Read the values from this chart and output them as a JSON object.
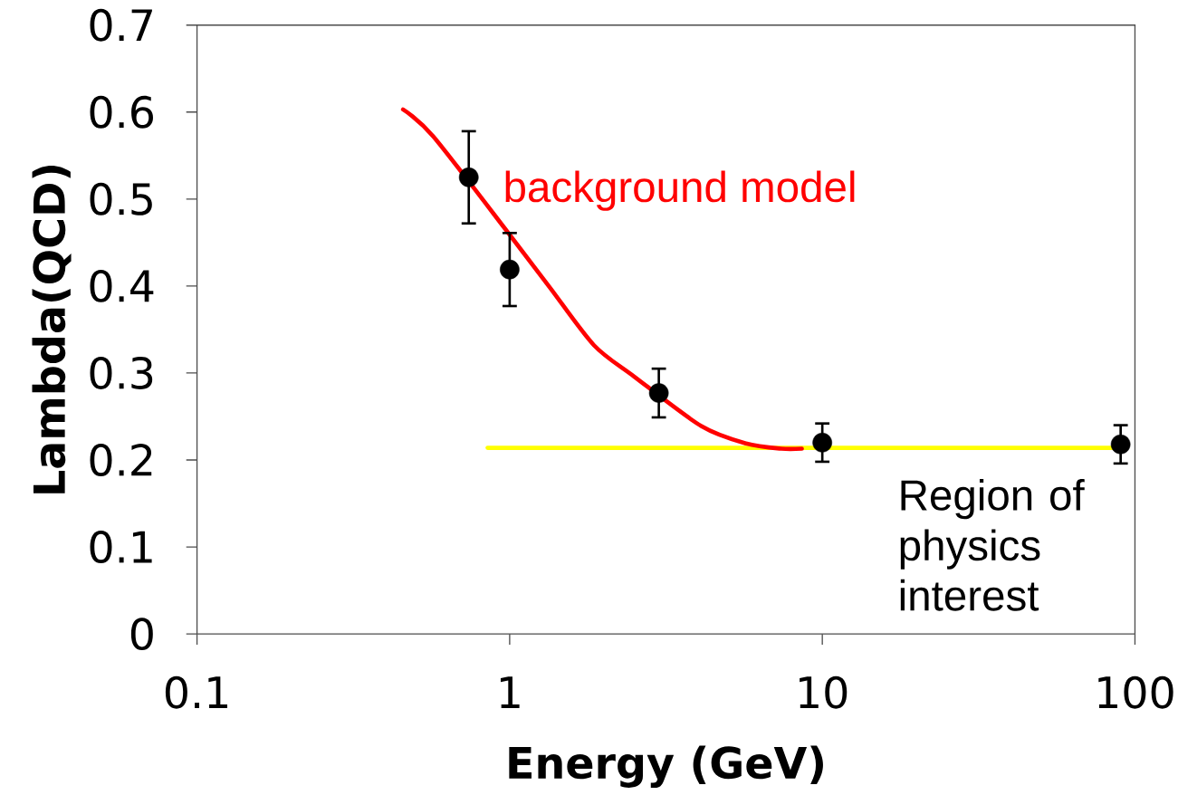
{
  "chart_data": {
    "type": "scatter",
    "xlabel": "Energy (GeV)",
    "ylabel": "Lambda(QCD)",
    "log": "x",
    "xlim": [
      0.1,
      100
    ],
    "xticks": [
      0.1,
      1,
      10,
      100
    ],
    "ylim": [
      0,
      0.7
    ],
    "yticks": [
      0,
      0.1,
      0.2,
      0.3,
      0.4,
      0.5,
      0.6,
      0.7
    ],
    "series": [
      {
        "type": "line",
        "color": "#ffff00",
        "x": [
          0.85,
          85
        ],
        "values": [
          0.214,
          0.214
        ]
      },
      {
        "type": "line",
        "color": "#ff0000",
        "x": [
          0.456,
          0.57,
          1.0,
          1.34,
          1.86,
          2.5,
          4.1,
          5.7,
          7.4,
          8.6
        ],
        "values": [
          0.603,
          0.572,
          0.459,
          0.399,
          0.332,
          0.296,
          0.239,
          0.219,
          0.213,
          0.213
        ]
      },
      {
        "color": "#000000",
        "x": [
          0.74,
          1.0,
          3,
          10,
          90
        ],
        "values": [
          0.525,
          0.419,
          0.277,
          0.22,
          0.218
        ],
        "errors": [
          0.053,
          0.042,
          0.028,
          0.022,
          0.022
        ]
      }
    ],
    "annotations": [
      "background model",
      "Region of physics interest"
    ]
  }
}
